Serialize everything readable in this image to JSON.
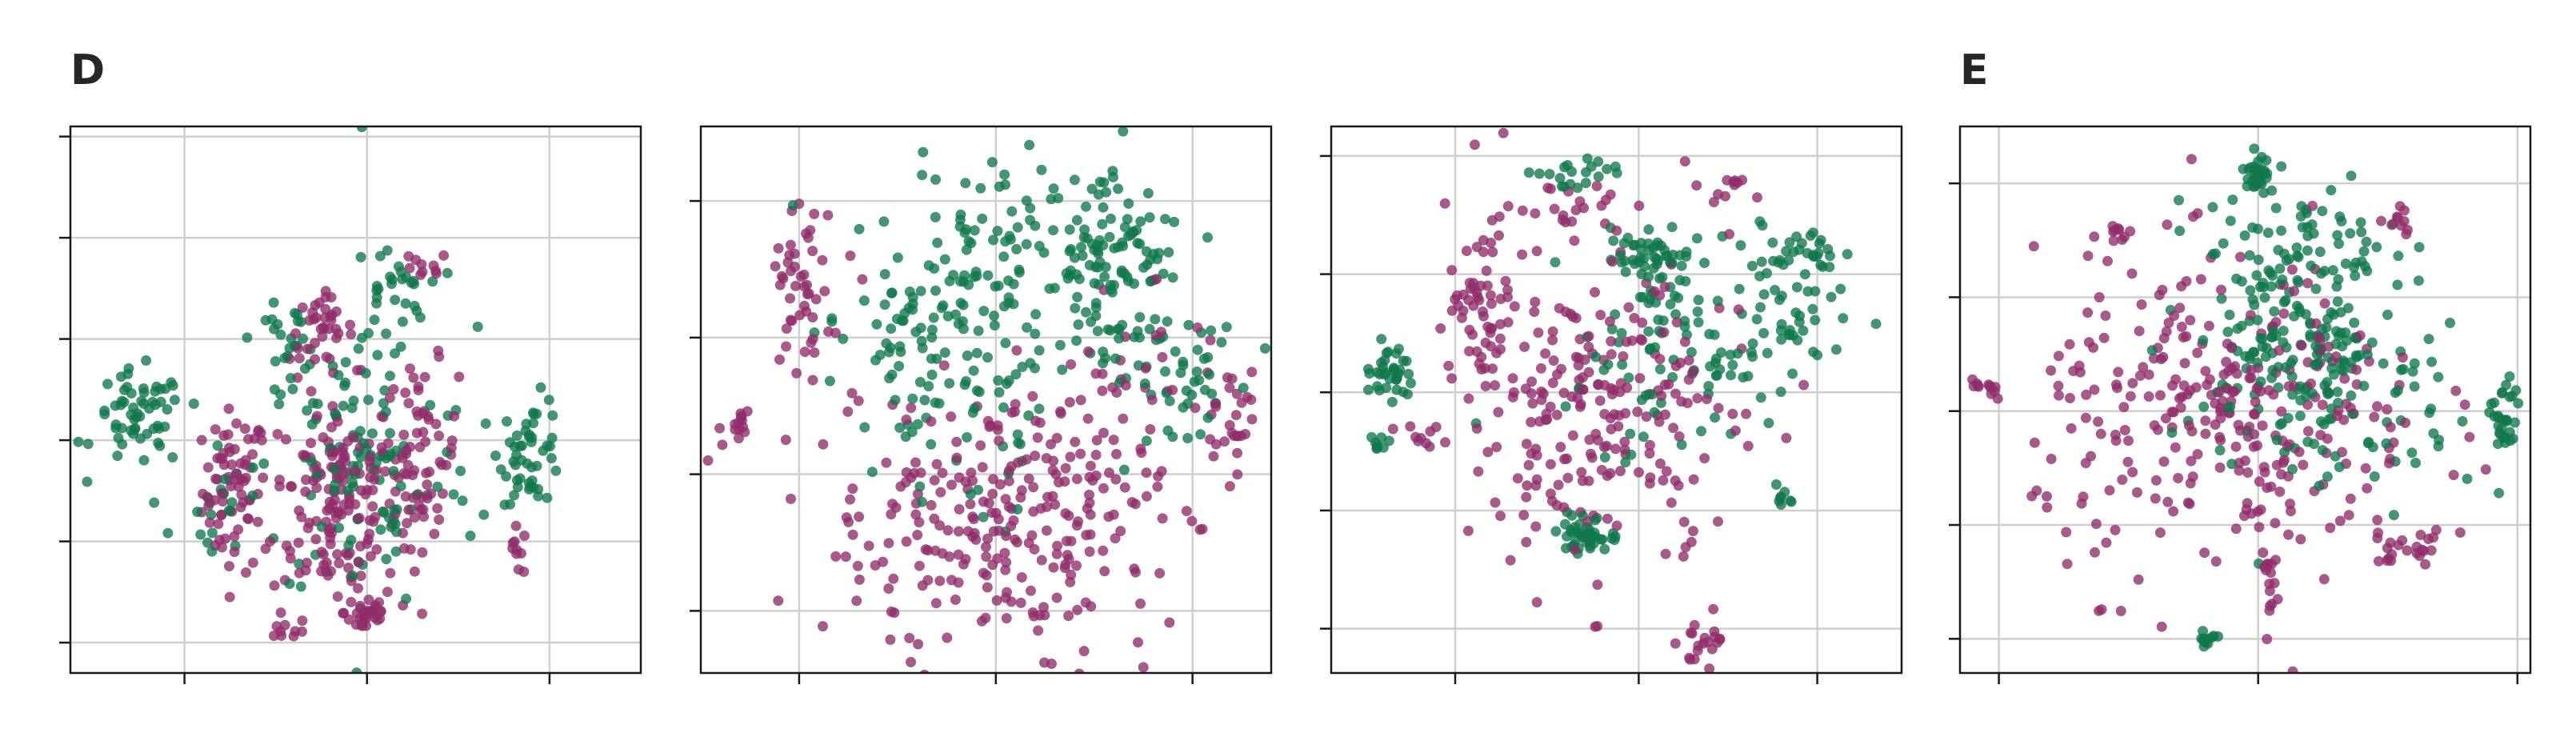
{
  "panel_labels": [
    "D",
    "E"
  ],
  "colors": {
    "purple": "#8f2c6a",
    "green": "#10774c",
    "grid": "#cfcfcf",
    "axes": "#1a1a1a"
  },
  "chart_data": [
    {
      "type": "scatter",
      "panel": "D",
      "title": "",
      "xlabel": "",
      "ylabel": "",
      "xlim": [
        -20,
        105
      ],
      "ylim": [
        -70,
        200
      ],
      "xticks": [
        5,
        45,
        85
      ],
      "yticks": [
        -55,
        -5,
        45,
        95,
        145,
        195
      ],
      "tick_labels_shown": false,
      "grid": true,
      "series": [
        {
          "color": "purple",
          "clusters": [
            {
              "cx": 16,
              "cy": 20,
              "sx": 3.5,
              "sy": 20,
              "n": 70
            },
            {
              "cx": 38,
              "cy": 15,
              "sx": 7,
              "sy": 28,
              "n": 160
            },
            {
              "cx": 57,
              "cy": 38,
              "sx": 4,
              "sy": 22,
              "n": 70
            },
            {
              "cx": 35,
              "cy": 100,
              "sx": 3.5,
              "sy": 8,
              "n": 35
            },
            {
              "cx": 45,
              "cy": -40,
              "sx": 2.5,
              "sy": 6,
              "n": 30
            },
            {
              "cx": 27,
              "cy": -50,
              "sx": 2,
              "sy": 3,
              "n": 8
            },
            {
              "cx": 78,
              "cy": -10,
              "sx": 1.5,
              "sy": 6,
              "n": 10
            },
            {
              "cx": 57,
              "cy": 130,
              "sx": 3,
              "sy": 4,
              "n": 10
            }
          ]
        },
        {
          "color": "green",
          "clusters": [
            {
              "cx": -5,
              "cy": 55,
              "sx": 5,
              "sy": 12,
              "n": 60
            },
            {
              "cx": 81,
              "cy": 40,
              "sx": 3.5,
              "sy": 13,
              "n": 50
            },
            {
              "cx": 45,
              "cy": 205,
              "sx": 0.8,
              "sy": 4,
              "n": 10
            },
            {
              "cx": 28,
              "cy": 95,
              "sx": 4,
              "sy": 8,
              "n": 25
            },
            {
              "cx": 50,
              "cy": 118,
              "sx": 4,
              "sy": 12,
              "n": 30
            },
            {
              "cx": 45,
              "cy": 30,
              "sx": 12,
              "sy": 35,
              "n": 110
            },
            {
              "cx": 10,
              "cy": 10,
              "sx": 4,
              "sy": 18,
              "n": 20
            }
          ]
        }
      ]
    },
    {
      "type": "scatter",
      "panel": "D",
      "title": "",
      "xlabel": "",
      "ylabel": "",
      "xlim": [
        -25,
        120
      ],
      "ylim": [
        -20,
        200
      ],
      "xticks": [
        0,
        50,
        100
      ],
      "yticks": [
        5,
        60,
        115,
        170
      ],
      "tick_labels_shown": false,
      "grid": true,
      "series": [
        {
          "color": "purple",
          "clusters": [
            {
              "cx": 50,
              "cy": 40,
              "sx": 22,
              "sy": 28,
              "n": 260
            },
            {
              "cx": 0,
              "cy": 135,
              "sx": 4,
              "sy": 18,
              "n": 45
            },
            {
              "cx": -15,
              "cy": 80,
              "sx": 2,
              "sy": 4,
              "n": 14
            },
            {
              "cx": 110,
              "cy": 85,
              "sx": 4,
              "sy": 14,
              "n": 30
            },
            {
              "cx": 85,
              "cy": 90,
              "sx": 10,
              "sy": 25,
              "n": 40
            }
          ]
        },
        {
          "color": "green",
          "clusters": [
            {
              "cx": 80,
              "cy": 145,
              "sx": 7,
              "sy": 18,
              "n": 90
            },
            {
              "cx": 55,
              "cy": 135,
              "sx": 18,
              "sy": 28,
              "n": 130
            },
            {
              "cx": 25,
              "cy": 115,
              "sx": 12,
              "sy": 18,
              "n": 60
            },
            {
              "cx": 100,
              "cy": 100,
              "sx": 8,
              "sy": 12,
              "n": 40
            },
            {
              "cx": 45,
              "cy": 80,
              "sx": 20,
              "sy": 22,
              "n": 30
            }
          ]
        }
      ]
    },
    {
      "type": "scatter",
      "panel": "",
      "title": "",
      "xlabel": "",
      "ylabel": "",
      "xlim": [
        -30,
        85
      ],
      "ylim": [
        -55,
        130
      ],
      "xticks": [
        -5,
        32,
        68
      ],
      "yticks": [
        -40,
        0,
        40,
        80,
        120
      ],
      "tick_labels_shown": false,
      "grid": true,
      "series": [
        {
          "color": "purple",
          "clusters": [
            {
              "cx": 25,
              "cy": 35,
              "sx": 16,
              "sy": 28,
              "n": 230
            },
            {
              "cx": 0,
              "cy": 70,
              "sx": 3,
              "sy": 22,
              "n": 55
            },
            {
              "cx": 45,
              "cy": -45,
              "sx": 2,
              "sy": 4,
              "n": 20
            },
            {
              "cx": 18,
              "cy": 100,
              "sx": 6,
              "sy": 5,
              "n": 20
            },
            {
              "cx": 50,
              "cy": 108,
              "sx": 3,
              "sy": 3,
              "n": 10
            },
            {
              "cx": -10,
              "cy": 25,
              "sx": 3,
              "sy": 3,
              "n": 10
            }
          ]
        },
        {
          "color": "green",
          "clusters": [
            {
              "cx": -18,
              "cy": 48,
              "sx": 2.5,
              "sy": 4,
              "n": 35
            },
            {
              "cx": -20,
              "cy": 23,
              "sx": 1,
              "sy": 1.5,
              "n": 8
            },
            {
              "cx": 35,
              "cy": 85,
              "sx": 5,
              "sy": 7,
              "n": 55
            },
            {
              "cx": 20,
              "cy": 113,
              "sx": 5,
              "sy": 3,
              "n": 20
            },
            {
              "cx": 40,
              "cy": 55,
              "sx": 12,
              "sy": 15,
              "n": 80
            },
            {
              "cx": 60,
              "cy": 70,
              "sx": 6,
              "sy": 12,
              "n": 50
            },
            {
              "cx": 65,
              "cy": 88,
              "sx": 3,
              "sy": 4,
              "n": 20
            },
            {
              "cx": 22,
              "cy": -10,
              "sx": 3,
              "sy": 4,
              "n": 45
            },
            {
              "cx": 60,
              "cy": 5,
              "sx": 2,
              "sy": 3,
              "n": 8
            }
          ]
        }
      ]
    },
    {
      "type": "scatter",
      "panel": "E",
      "title": "",
      "xlabel": "",
      "ylabel": "",
      "xlim": [
        -70,
        150
      ],
      "ylim": [
        -55,
        185
      ],
      "xticks": [
        -55,
        45,
        145
      ],
      "yticks": [
        -40,
        10,
        60,
        110,
        160
      ],
      "tick_labels_shown": false,
      "grid": true,
      "series": [
        {
          "color": "purple",
          "clusters": [
            {
              "cx": 35,
              "cy": 55,
              "sx": 38,
              "sy": 35,
              "n": 300
            },
            {
              "cx": -60,
              "cy": 70,
              "sx": 3,
              "sy": 3,
              "n": 12
            },
            {
              "cx": 103,
              "cy": 0,
              "sx": 8,
              "sy": 4,
              "n": 22
            },
            {
              "cx": 49,
              "cy": -15,
              "sx": 2,
              "sy": 6,
              "n": 15
            },
            {
              "cx": 100,
              "cy": 145,
              "sx": 3,
              "sy": 5,
              "n": 10
            },
            {
              "cx": -10,
              "cy": 140,
              "sx": 3,
              "sy": 3,
              "n": 10
            }
          ]
        },
        {
          "color": "green",
          "clusters": [
            {
              "cx": 45,
              "cy": 165,
              "sx": 3,
              "sy": 4,
              "n": 35
            },
            {
              "cx": 60,
              "cy": 90,
              "sx": 20,
              "sy": 20,
              "n": 160
            },
            {
              "cx": 140,
              "cy": 55,
              "sx": 2.5,
              "sy": 10,
              "n": 30
            },
            {
              "cx": 25,
              "cy": -40,
              "sx": 2,
              "sy": 2,
              "n": 12
            },
            {
              "cx": 55,
              "cy": 135,
              "sx": 25,
              "sy": 12,
              "n": 50
            },
            {
              "cx": 90,
              "cy": 60,
              "sx": 20,
              "sy": 25,
              "n": 60
            }
          ]
        }
      ]
    }
  ]
}
